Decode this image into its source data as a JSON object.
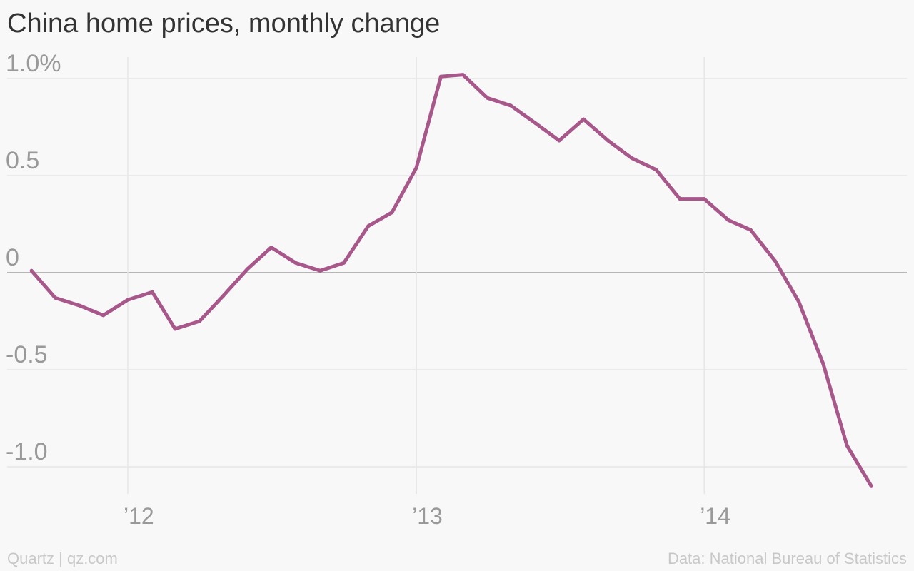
{
  "title": "China home prices, monthly change",
  "footer": {
    "source_left": "Quartz | qz.com",
    "source_right": "Data: National Bureau of Statistics"
  },
  "colors": {
    "line": "#a8578a",
    "grid": "#e6e6e6",
    "zero": "#a0a0a0",
    "tick_text": "#999999",
    "background": "#f8f8f8"
  },
  "chart_data": {
    "type": "line",
    "title": "China home prices, monthly change",
    "ylim": [
      -1.1,
      1.1
    ],
    "x_range": [
      "2011-08-01",
      "2014-09-15"
    ],
    "grid": true,
    "y_ticks": [
      {
        "value": 1.0,
        "label": "1.0%"
      },
      {
        "value": 0.5,
        "label": "0.5"
      },
      {
        "value": 0,
        "label": "0"
      },
      {
        "value": -0.5,
        "label": "-0.5"
      },
      {
        "value": -1.0,
        "label": "-1.0"
      }
    ],
    "x_ticks": [
      {
        "date": "2012-01-01",
        "label": "’12"
      },
      {
        "date": "2013-01-01",
        "label": "’13"
      },
      {
        "date": "2014-01-01",
        "label": "’14"
      }
    ],
    "series": [
      {
        "points": [
          {
            "x": "2011-09",
            "y": 0.01
          },
          {
            "x": "2011-10",
            "y": -0.13
          },
          {
            "x": "2011-11",
            "y": -0.17
          },
          {
            "x": "2011-12",
            "y": -0.22
          },
          {
            "x": "2012-01",
            "y": -0.14
          },
          {
            "x": "2012-02",
            "y": -0.1
          },
          {
            "x": "2012-03",
            "y": -0.29
          },
          {
            "x": "2012-04",
            "y": -0.25
          },
          {
            "x": "2012-05",
            "y": -0.12
          },
          {
            "x": "2012-06",
            "y": 0.02
          },
          {
            "x": "2012-07",
            "y": 0.13
          },
          {
            "x": "2012-08",
            "y": 0.05
          },
          {
            "x": "2012-09",
            "y": 0.01
          },
          {
            "x": "2012-10",
            "y": 0.05
          },
          {
            "x": "2012-11",
            "y": 0.24
          },
          {
            "x": "2012-12",
            "y": 0.31
          },
          {
            "x": "2013-01",
            "y": 0.54
          },
          {
            "x": "2013-02",
            "y": 1.01
          },
          {
            "x": "2013-03",
            "y": 1.02
          },
          {
            "x": "2013-04",
            "y": 0.9
          },
          {
            "x": "2013-05",
            "y": 0.86
          },
          {
            "x": "2013-06",
            "y": 0.77
          },
          {
            "x": "2013-07",
            "y": 0.68
          },
          {
            "x": "2013-08",
            "y": 0.79
          },
          {
            "x": "2013-09",
            "y": 0.68
          },
          {
            "x": "2013-10",
            "y": 0.59
          },
          {
            "x": "2013-11",
            "y": 0.53
          },
          {
            "x": "2013-12",
            "y": 0.38
          },
          {
            "x": "2014-01",
            "y": 0.38
          },
          {
            "x": "2014-02",
            "y": 0.27
          },
          {
            "x": "2014-03",
            "y": 0.22
          },
          {
            "x": "2014-04",
            "y": 0.06
          },
          {
            "x": "2014-05",
            "y": -0.15
          },
          {
            "x": "2014-06",
            "y": -0.47
          },
          {
            "x": "2014-07",
            "y": -0.89
          },
          {
            "x": "2014-08",
            "y": -1.1
          }
        ]
      }
    ]
  }
}
